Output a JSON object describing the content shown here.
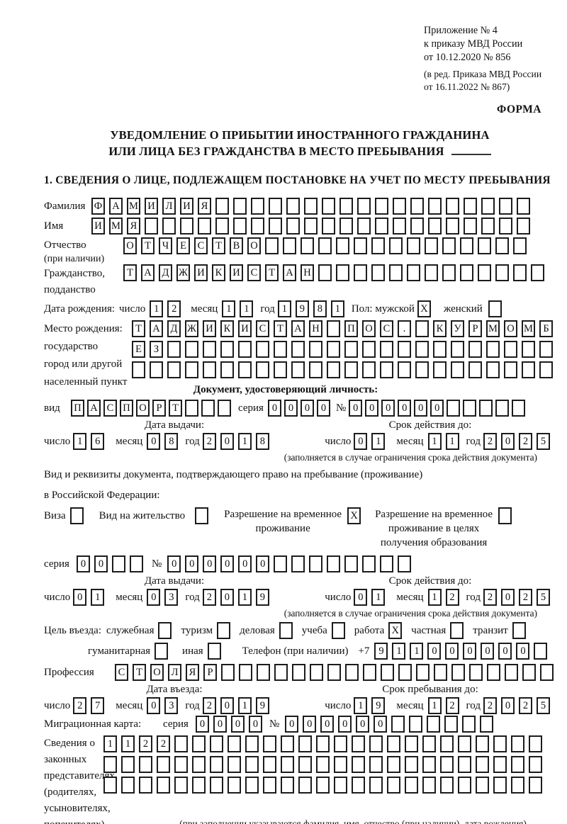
{
  "labels": {
    "day": "число",
    "month": "месяц",
    "year": "год",
    "series": "серия",
    "number": "№"
  },
  "header": {
    "ref_lines": [
      "Приложение № 4",
      "к приказу МВД России",
      "от 10.12.2020 № 856"
    ],
    "amend_lines": [
      "(в ред. Приказа МВД России",
      "от 16.11.2022 № 867)"
    ],
    "forma_label": "ФОРМА"
  },
  "title": {
    "line1": "УВЕДОМЛЕНИЕ О ПРИБЫТИИ ИНОСТРАННОГО ГРАЖДАНИНА",
    "line2": "ИЛИ ЛИЦА БЕЗ ГРАЖДАНСТВА В МЕСТО ПРЕБЫВАНИЯ"
  },
  "section1": {
    "heading": "1. СВЕДЕНИЯ О ЛИЦЕ, ПОДЛЕЖАЩЕМ ПОСТАНОВКЕ НА УЧЕТ ПО МЕСТУ ПРЕБЫВАНИЯ"
  },
  "surname": {
    "label": "Фамилия",
    "row": {
      "value": "ФАМИЛИЯ",
      "count": 25
    }
  },
  "given_name": {
    "label": "Имя",
    "row": {
      "value": "ИМЯ",
      "count": 25
    }
  },
  "patronymic": {
    "label_lines": [
      "Отчество",
      "(при наличии)"
    ],
    "row": {
      "value": "ОТЧЕСТВО",
      "count": 23
    }
  },
  "citizenship": {
    "label_lines": [
      "Гражданство,",
      "подданство"
    ],
    "row": {
      "value": "ТАДЖИКИСТАН",
      "count": 24
    }
  },
  "birth_date": {
    "label": "Дата рождения:",
    "day": {
      "value": "12",
      "count": 2
    },
    "month": {
      "value": "11",
      "count": 2
    },
    "year": {
      "value": "1981",
      "count": 4
    },
    "sex_label": "Пол: мужской",
    "male_mark": "X",
    "female_label": "женский",
    "female_mark": ""
  },
  "birth_place": {
    "label_lines": [
      "Место рождения:",
      "государство",
      "город или другой",
      "населенный пункт"
    ],
    "rows": [
      {
        "value": "ТАДЖИКИСТАН ПОС. КУРМОМБ",
        "count": 24
      },
      {
        "value": "ЕЗ",
        "count": 24
      },
      {
        "value": "",
        "count": 24
      }
    ]
  },
  "identity_doc": {
    "heading": "Документ, удостоверяющий личность:",
    "type_label": "вид",
    "type": {
      "value": "ПАСПОРТ",
      "count": 10
    },
    "series": {
      "value": "0000",
      "count": 4
    },
    "number": {
      "value": "000000",
      "count": 11
    },
    "issue_label": "Дата выдачи:",
    "issue_day": {
      "value": "16",
      "count": 2
    },
    "issue_month": {
      "value": "08",
      "count": 2
    },
    "issue_year": {
      "value": "2018",
      "count": 4
    },
    "valid_label": "Срок действия до:",
    "valid_day": {
      "value": "01",
      "count": 2
    },
    "valid_month": {
      "value": "11",
      "count": 2
    },
    "valid_year": {
      "value": "2025",
      "count": 4
    },
    "valid_note": "(заполняется в случае ограничения срока действия документа)"
  },
  "residence_doc": {
    "intro_line1": "Вид и реквизиты документа, подтверждающего право на пребывание (проживание)",
    "intro_line2": "в Российской Федерации:",
    "visa_label": "Виза",
    "visa_mark": "",
    "permit_label": "Вид на жительство",
    "permit_mark": "",
    "temp_label_lines": [
      "Разрешение на временное",
      "проживание"
    ],
    "temp_mark": "X",
    "edu_label_lines": [
      "Разрешение на временное",
      "проживание в целях",
      "получения образования"
    ],
    "edu_mark": "",
    "series": {
      "value": "00",
      "count": 4
    },
    "number": {
      "value": "000000",
      "count": 14
    },
    "issue_label": "Дата выдачи:",
    "issue_day": {
      "value": "01",
      "count": 2
    },
    "issue_month": {
      "value": "03",
      "count": 2
    },
    "issue_year": {
      "value": "2019",
      "count": 4
    },
    "valid_label": "Срок действия до:",
    "valid_day": {
      "value": "01",
      "count": 2
    },
    "valid_month": {
      "value": "12",
      "count": 2
    },
    "valid_year": {
      "value": "2025",
      "count": 4
    },
    "valid_note": "(заполняется в случае ограничения срока действия документа)"
  },
  "visit_purpose": {
    "label": "Цель въезда:",
    "options_row1": [
      {
        "label": "служебная",
        "mark": ""
      },
      {
        "label": "туризм",
        "mark": ""
      },
      {
        "label": "деловая",
        "mark": ""
      },
      {
        "label": "учеба",
        "mark": ""
      },
      {
        "label": "работа",
        "mark": "X"
      },
      {
        "label": "частная",
        "mark": ""
      },
      {
        "label": "транзит",
        "mark": ""
      }
    ],
    "options_row2": [
      {
        "label": "гуманитарная",
        "mark": ""
      },
      {
        "label": "иная",
        "mark": ""
      }
    ],
    "phone_label": "Телефон (при наличии)",
    "phone_prefix": "+7",
    "phone": {
      "value": "911000000",
      "count": 10
    }
  },
  "profession": {
    "label": "Профессия",
    "row": {
      "value": "СТОЛЯР",
      "count": 25
    }
  },
  "entry": {
    "date_label": "Дата въезда:",
    "day": {
      "value": "27",
      "count": 2
    },
    "month": {
      "value": "03",
      "count": 2
    },
    "year": {
      "value": "2019",
      "count": 4
    },
    "stay_label": "Срок пребывания до:",
    "stay_day": {
      "value": "19",
      "count": 2
    },
    "stay_month": {
      "value": "12",
      "count": 2
    },
    "stay_year": {
      "value": "2025",
      "count": 4
    }
  },
  "migration_card": {
    "label": "Миграционная карта:",
    "series": {
      "value": "0000",
      "count": 4
    },
    "number": {
      "value": "000000",
      "count": 12
    }
  },
  "representatives": {
    "label_lines": [
      "Сведения о",
      "законных",
      "представителях",
      "(родителях,",
      "усыновителях,",
      "попечителях)"
    ],
    "rows": [
      {
        "value": "1122",
        "count": 25
      },
      {
        "value": "",
        "count": 25
      },
      {
        "value": "",
        "count": 25
      }
    ],
    "note": "(при заполнении указываются фамилия, имя, отчество (при наличии), дата рождения)"
  }
}
